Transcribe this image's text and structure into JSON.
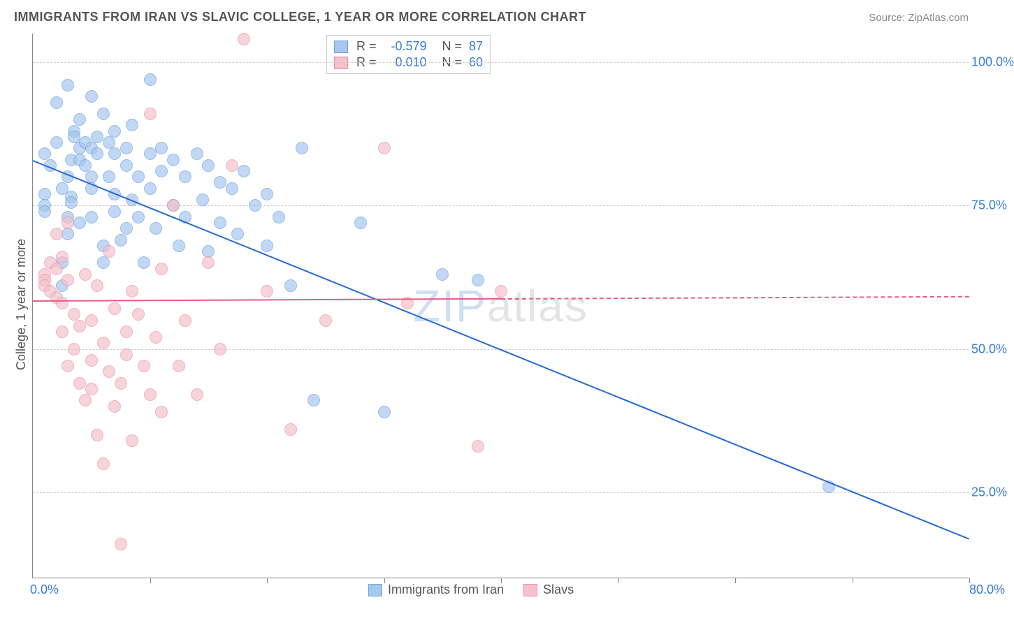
{
  "header": {
    "title": "IMMIGRANTS FROM IRAN VS SLAVIC COLLEGE, 1 YEAR OR MORE CORRELATION CHART",
    "source_prefix": "Source: ",
    "source_name": "ZipAtlas.com"
  },
  "watermark": {
    "part1": "ZIP",
    "part2": "atlas"
  },
  "chart": {
    "type": "scatter",
    "ylabel": "College, 1 year or more",
    "xlim": [
      0,
      80
    ],
    "ylim": [
      10,
      105
    ],
    "x_ticks": [
      10,
      20,
      30,
      40,
      50,
      60,
      70,
      80
    ],
    "y_grid": [
      25,
      50,
      75,
      100
    ],
    "y_grid_labels": [
      "25.0%",
      "50.0%",
      "75.0%",
      "100.0%"
    ],
    "xlim_labels": {
      "min": "0.0%",
      "max": "80.0%"
    },
    "background_color": "#ffffff",
    "grid_color": "#cccccc",
    "axis_color": "#888888",
    "series": [
      {
        "id": "iran",
        "label": "Immigrants from Iran",
        "fill": "#a7c7ee",
        "stroke": "#6ea3e0",
        "line_color": "#2568d6",
        "r": -0.579,
        "n": 87,
        "trend": {
          "x1": 0,
          "y1": 83,
          "x2": 80,
          "y2": 17,
          "solid_until_x": 80
        },
        "points": [
          [
            1,
            84
          ],
          [
            1,
            77
          ],
          [
            1,
            75
          ],
          [
            1,
            74
          ],
          [
            1.5,
            82
          ],
          [
            2,
            93
          ],
          [
            2,
            86
          ],
          [
            2.5,
            65
          ],
          [
            2.5,
            61
          ],
          [
            2.5,
            78
          ],
          [
            3,
            96
          ],
          [
            3,
            80
          ],
          [
            3,
            73
          ],
          [
            3,
            70
          ],
          [
            3.3,
            83
          ],
          [
            3.3,
            76.5
          ],
          [
            3.3,
            75.5
          ],
          [
            3.5,
            88
          ],
          [
            3.5,
            87
          ],
          [
            4,
            90
          ],
          [
            4,
            85
          ],
          [
            4,
            83
          ],
          [
            4,
            72
          ],
          [
            4.5,
            86
          ],
          [
            4.5,
            82
          ],
          [
            5,
            94
          ],
          [
            5,
            85
          ],
          [
            5,
            80
          ],
          [
            5,
            78
          ],
          [
            5,
            73
          ],
          [
            5.5,
            87
          ],
          [
            5.5,
            84
          ],
          [
            6,
            91
          ],
          [
            6,
            68
          ],
          [
            6,
            65
          ],
          [
            6.5,
            86
          ],
          [
            6.5,
            80
          ],
          [
            7,
            88
          ],
          [
            7,
            84
          ],
          [
            7,
            77
          ],
          [
            7,
            74
          ],
          [
            7.5,
            69
          ],
          [
            8,
            85
          ],
          [
            8,
            82
          ],
          [
            8,
            71
          ],
          [
            8.5,
            89
          ],
          [
            8.5,
            76
          ],
          [
            9,
            80
          ],
          [
            9,
            73
          ],
          [
            9.5,
            65
          ],
          [
            10,
            97
          ],
          [
            10,
            84
          ],
          [
            10,
            78
          ],
          [
            10.5,
            71
          ],
          [
            11,
            85
          ],
          [
            11,
            81
          ],
          [
            12,
            83
          ],
          [
            12,
            75
          ],
          [
            12.5,
            68
          ],
          [
            13,
            80
          ],
          [
            13,
            73
          ],
          [
            14,
            84
          ],
          [
            14.5,
            76
          ],
          [
            15,
            82
          ],
          [
            15,
            67
          ],
          [
            16,
            79
          ],
          [
            16,
            72
          ],
          [
            17,
            78
          ],
          [
            17.5,
            70
          ],
          [
            18,
            81
          ],
          [
            19,
            75
          ],
          [
            20,
            77
          ],
          [
            20,
            68
          ],
          [
            21,
            73
          ],
          [
            22,
            61
          ],
          [
            23,
            85
          ],
          [
            24,
            41
          ],
          [
            28,
            72
          ],
          [
            30,
            39
          ],
          [
            35,
            63
          ],
          [
            38,
            62
          ],
          [
            68,
            26
          ]
        ]
      },
      {
        "id": "slavs",
        "label": "Slavs",
        "fill": "#f4c1cd",
        "stroke": "#eb94ab",
        "line_color": "#e75a87",
        "r": 0.01,
        "n": 60,
        "trend": {
          "x1": 0,
          "y1": 58.5,
          "x2": 80,
          "y2": 59.3,
          "solid_until_x": 40
        },
        "points": [
          [
            1,
            63
          ],
          [
            1,
            62
          ],
          [
            1,
            61
          ],
          [
            1.5,
            65
          ],
          [
            1.5,
            60
          ],
          [
            2,
            64
          ],
          [
            2,
            59
          ],
          [
            2,
            70
          ],
          [
            2.5,
            58
          ],
          [
            2.5,
            53
          ],
          [
            2.5,
            66
          ],
          [
            3,
            62
          ],
          [
            3,
            47
          ],
          [
            3,
            72
          ],
          [
            3.5,
            56
          ],
          [
            3.5,
            50
          ],
          [
            4,
            54
          ],
          [
            4,
            44
          ],
          [
            4.5,
            63
          ],
          [
            4.5,
            41
          ],
          [
            5,
            55
          ],
          [
            5,
            48
          ],
          [
            5,
            43
          ],
          [
            5.5,
            61
          ],
          [
            5.5,
            35
          ],
          [
            6,
            51
          ],
          [
            6,
            30
          ],
          [
            6.5,
            67
          ],
          [
            6.5,
            46
          ],
          [
            7,
            57
          ],
          [
            7,
            40
          ],
          [
            7.5,
            44
          ],
          [
            7.5,
            16
          ],
          [
            8,
            53
          ],
          [
            8,
            49
          ],
          [
            8.5,
            60
          ],
          [
            8.5,
            34
          ],
          [
            9,
            56
          ],
          [
            9.5,
            47
          ],
          [
            10,
            91
          ],
          [
            10,
            42
          ],
          [
            10.5,
            52
          ],
          [
            11,
            64
          ],
          [
            11,
            39
          ],
          [
            12,
            75
          ],
          [
            12.5,
            47
          ],
          [
            13,
            55
          ],
          [
            14,
            42
          ],
          [
            15,
            65
          ],
          [
            16,
            50
          ],
          [
            17,
            82
          ],
          [
            18,
            104
          ],
          [
            20,
            60
          ],
          [
            22,
            36
          ],
          [
            25,
            55
          ],
          [
            30,
            85
          ],
          [
            32,
            58
          ],
          [
            38,
            33
          ],
          [
            40,
            60
          ]
        ]
      }
    ],
    "legend_top": [
      {
        "series": 0,
        "r_text": "-0.579",
        "n_text": "87"
      },
      {
        "series": 1,
        "r_text": "0.010",
        "n_text": "60"
      }
    ]
  }
}
